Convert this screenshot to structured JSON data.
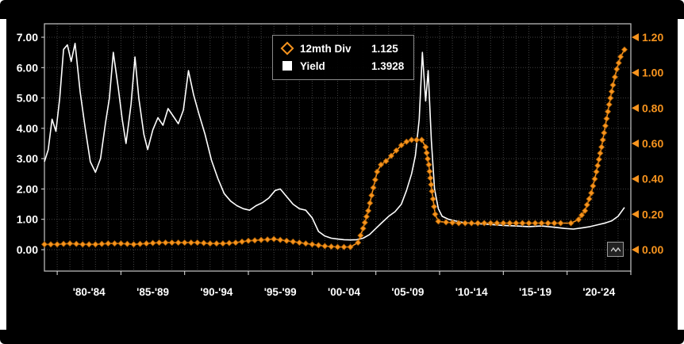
{
  "chart_data": {
    "type": "line",
    "title": "",
    "legend_position": "top-center",
    "background": "#000000",
    "grid": true,
    "x_axis": {
      "domain": [
        1979,
        2025
      ],
      "tick_labels": [
        "'80-'84",
        "'85-'89",
        "'90-'94",
        "'95-'99",
        "'00-'04",
        "'05-'09",
        "'10-'14",
        "'15-'19",
        "'20-'24"
      ],
      "tick_years": [
        1982.5,
        1987.5,
        1992.5,
        1997.5,
        2002.5,
        2007.5,
        2012.5,
        2017.5,
        2022.5
      ]
    },
    "left_axis": {
      "min": 0,
      "max": 7,
      "tick_step": 1,
      "tick_labels": [
        "0.00",
        "1.00",
        "2.00",
        "3.00",
        "4.00",
        "5.00",
        "6.00",
        "7.00"
      ],
      "color": "#ffffff"
    },
    "right_axis": {
      "min": 0,
      "max": 1.2,
      "tick_step": 0.2,
      "tick_labels": [
        "0.00",
        "0.20",
        "0.40",
        "0.60",
        "0.80",
        "1.00",
        "1.20"
      ],
      "color": "#f7941e"
    },
    "series": [
      {
        "name": "12mth Div",
        "last_value": "1.125",
        "axis": "right",
        "color": "#f7941e",
        "marker": "diamond",
        "points": [
          [
            1979,
            0.03
          ],
          [
            1980,
            0.03
          ],
          [
            1981,
            0.035
          ],
          [
            1982,
            0.03
          ],
          [
            1983,
            0.03
          ],
          [
            1984,
            0.035
          ],
          [
            1985,
            0.035
          ],
          [
            1986,
            0.03
          ],
          [
            1987,
            0.035
          ],
          [
            1988,
            0.04
          ],
          [
            1989,
            0.04
          ],
          [
            1990,
            0.04
          ],
          [
            1991,
            0.04
          ],
          [
            1992,
            0.035
          ],
          [
            1993,
            0.035
          ],
          [
            1994,
            0.04
          ],
          [
            1995,
            0.05
          ],
          [
            1996,
            0.055
          ],
          [
            1997,
            0.06
          ],
          [
            1998,
            0.05
          ],
          [
            1999,
            0.04
          ],
          [
            2000,
            0.03
          ],
          [
            2001,
            0.02
          ],
          [
            2002,
            0.015
          ],
          [
            2003,
            0.015
          ],
          [
            2003.6,
            0.04
          ],
          [
            2004,
            0.12
          ],
          [
            2004.4,
            0.22
          ],
          [
            2004.8,
            0.35
          ],
          [
            2005.1,
            0.44
          ],
          [
            2005.4,
            0.48
          ],
          [
            2005.8,
            0.5
          ],
          [
            2006.2,
            0.53
          ],
          [
            2006.6,
            0.56
          ],
          [
            2007,
            0.59
          ],
          [
            2007.4,
            0.61
          ],
          [
            2007.8,
            0.62
          ],
          [
            2008.2,
            0.62
          ],
          [
            2008.6,
            0.62
          ],
          [
            2008.9,
            0.58
          ],
          [
            2009.15,
            0.48
          ],
          [
            2009.4,
            0.33
          ],
          [
            2009.65,
            0.2
          ],
          [
            2009.9,
            0.16
          ],
          [
            2010.5,
            0.155
          ],
          [
            2011.5,
            0.15
          ],
          [
            2012.5,
            0.15
          ],
          [
            2013.5,
            0.15
          ],
          [
            2014.5,
            0.15
          ],
          [
            2015.5,
            0.15
          ],
          [
            2016.5,
            0.15
          ],
          [
            2017.5,
            0.15
          ],
          [
            2018.5,
            0.15
          ],
          [
            2019.5,
            0.15
          ],
          [
            2020.3,
            0.15
          ],
          [
            2020.9,
            0.17
          ],
          [
            2021.4,
            0.22
          ],
          [
            2021.9,
            0.32
          ],
          [
            2022.3,
            0.44
          ],
          [
            2022.7,
            0.58
          ],
          [
            2023,
            0.7
          ],
          [
            2023.3,
            0.82
          ],
          [
            2023.6,
            0.93
          ],
          [
            2023.9,
            1.02
          ],
          [
            2024.2,
            1.09
          ],
          [
            2024.5,
            1.13
          ]
        ]
      },
      {
        "name": "Yield",
        "last_value": "1.3928",
        "axis": "left",
        "color": "#ffffff",
        "marker": "none",
        "points": [
          [
            1979,
            2.9
          ],
          [
            1979.3,
            3.3
          ],
          [
            1979.6,
            4.3
          ],
          [
            1979.9,
            3.9
          ],
          [
            1980.2,
            5.0
          ],
          [
            1980.5,
            6.6
          ],
          [
            1980.8,
            6.75
          ],
          [
            1981.1,
            6.2
          ],
          [
            1981.4,
            6.8
          ],
          [
            1981.8,
            5.2
          ],
          [
            1982.2,
            4.0
          ],
          [
            1982.6,
            2.9
          ],
          [
            1983,
            2.55
          ],
          [
            1983.4,
            3.0
          ],
          [
            1983.8,
            4.2
          ],
          [
            1984.1,
            5.0
          ],
          [
            1984.4,
            6.5
          ],
          [
            1984.8,
            5.3
          ],
          [
            1985.1,
            4.3
          ],
          [
            1985.4,
            3.5
          ],
          [
            1985.8,
            4.8
          ],
          [
            1986.1,
            6.35
          ],
          [
            1986.4,
            5.0
          ],
          [
            1986.8,
            3.8
          ],
          [
            1987.1,
            3.3
          ],
          [
            1987.5,
            3.95
          ],
          [
            1987.9,
            4.35
          ],
          [
            1988.3,
            4.1
          ],
          [
            1988.7,
            4.65
          ],
          [
            1989.1,
            4.4
          ],
          [
            1989.5,
            4.15
          ],
          [
            1989.9,
            4.6
          ],
          [
            1990.3,
            5.9
          ],
          [
            1990.7,
            5.1
          ],
          [
            1991.1,
            4.5
          ],
          [
            1991.6,
            3.8
          ],
          [
            1992.1,
            2.95
          ],
          [
            1992.6,
            2.35
          ],
          [
            1993.1,
            1.85
          ],
          [
            1993.6,
            1.6
          ],
          [
            1994.1,
            1.45
          ],
          [
            1994.6,
            1.35
          ],
          [
            1995.1,
            1.3
          ],
          [
            1995.6,
            1.45
          ],
          [
            1996.1,
            1.55
          ],
          [
            1996.6,
            1.7
          ],
          [
            1997.1,
            1.95
          ],
          [
            1997.5,
            2.0
          ],
          [
            1998,
            1.75
          ],
          [
            1998.5,
            1.5
          ],
          [
            1999,
            1.35
          ],
          [
            1999.5,
            1.3
          ],
          [
            2000,
            1.05
          ],
          [
            2000.5,
            0.6
          ],
          [
            2001,
            0.45
          ],
          [
            2001.5,
            0.38
          ],
          [
            2002,
            0.35
          ],
          [
            2002.5,
            0.33
          ],
          [
            2003,
            0.32
          ],
          [
            2003.5,
            0.33
          ],
          [
            2004,
            0.38
          ],
          [
            2004.5,
            0.5
          ],
          [
            2005,
            0.7
          ],
          [
            2005.5,
            0.9
          ],
          [
            2006,
            1.1
          ],
          [
            2006.5,
            1.25
          ],
          [
            2007,
            1.5
          ],
          [
            2007.4,
            1.95
          ],
          [
            2007.8,
            2.5
          ],
          [
            2008.1,
            3.1
          ],
          [
            2008.4,
            4.3
          ],
          [
            2008.65,
            6.5
          ],
          [
            2008.9,
            4.9
          ],
          [
            2009.1,
            5.9
          ],
          [
            2009.35,
            3.6
          ],
          [
            2009.6,
            2.0
          ],
          [
            2009.9,
            1.35
          ],
          [
            2010.2,
            1.1
          ],
          [
            2010.7,
            1.0
          ],
          [
            2011.2,
            0.95
          ],
          [
            2011.8,
            0.9
          ],
          [
            2012.5,
            0.87
          ],
          [
            2013.2,
            0.85
          ],
          [
            2014,
            0.83
          ],
          [
            2015,
            0.8
          ],
          [
            2016,
            0.78
          ],
          [
            2017,
            0.76
          ],
          [
            2018,
            0.78
          ],
          [
            2019,
            0.74
          ],
          [
            2019.8,
            0.7
          ],
          [
            2020.5,
            0.68
          ],
          [
            2021.2,
            0.72
          ],
          [
            2021.8,
            0.76
          ],
          [
            2022.4,
            0.82
          ],
          [
            2023,
            0.88
          ],
          [
            2023.5,
            0.95
          ],
          [
            2024,
            1.1
          ],
          [
            2024.5,
            1.3928
          ]
        ]
      }
    ]
  }
}
